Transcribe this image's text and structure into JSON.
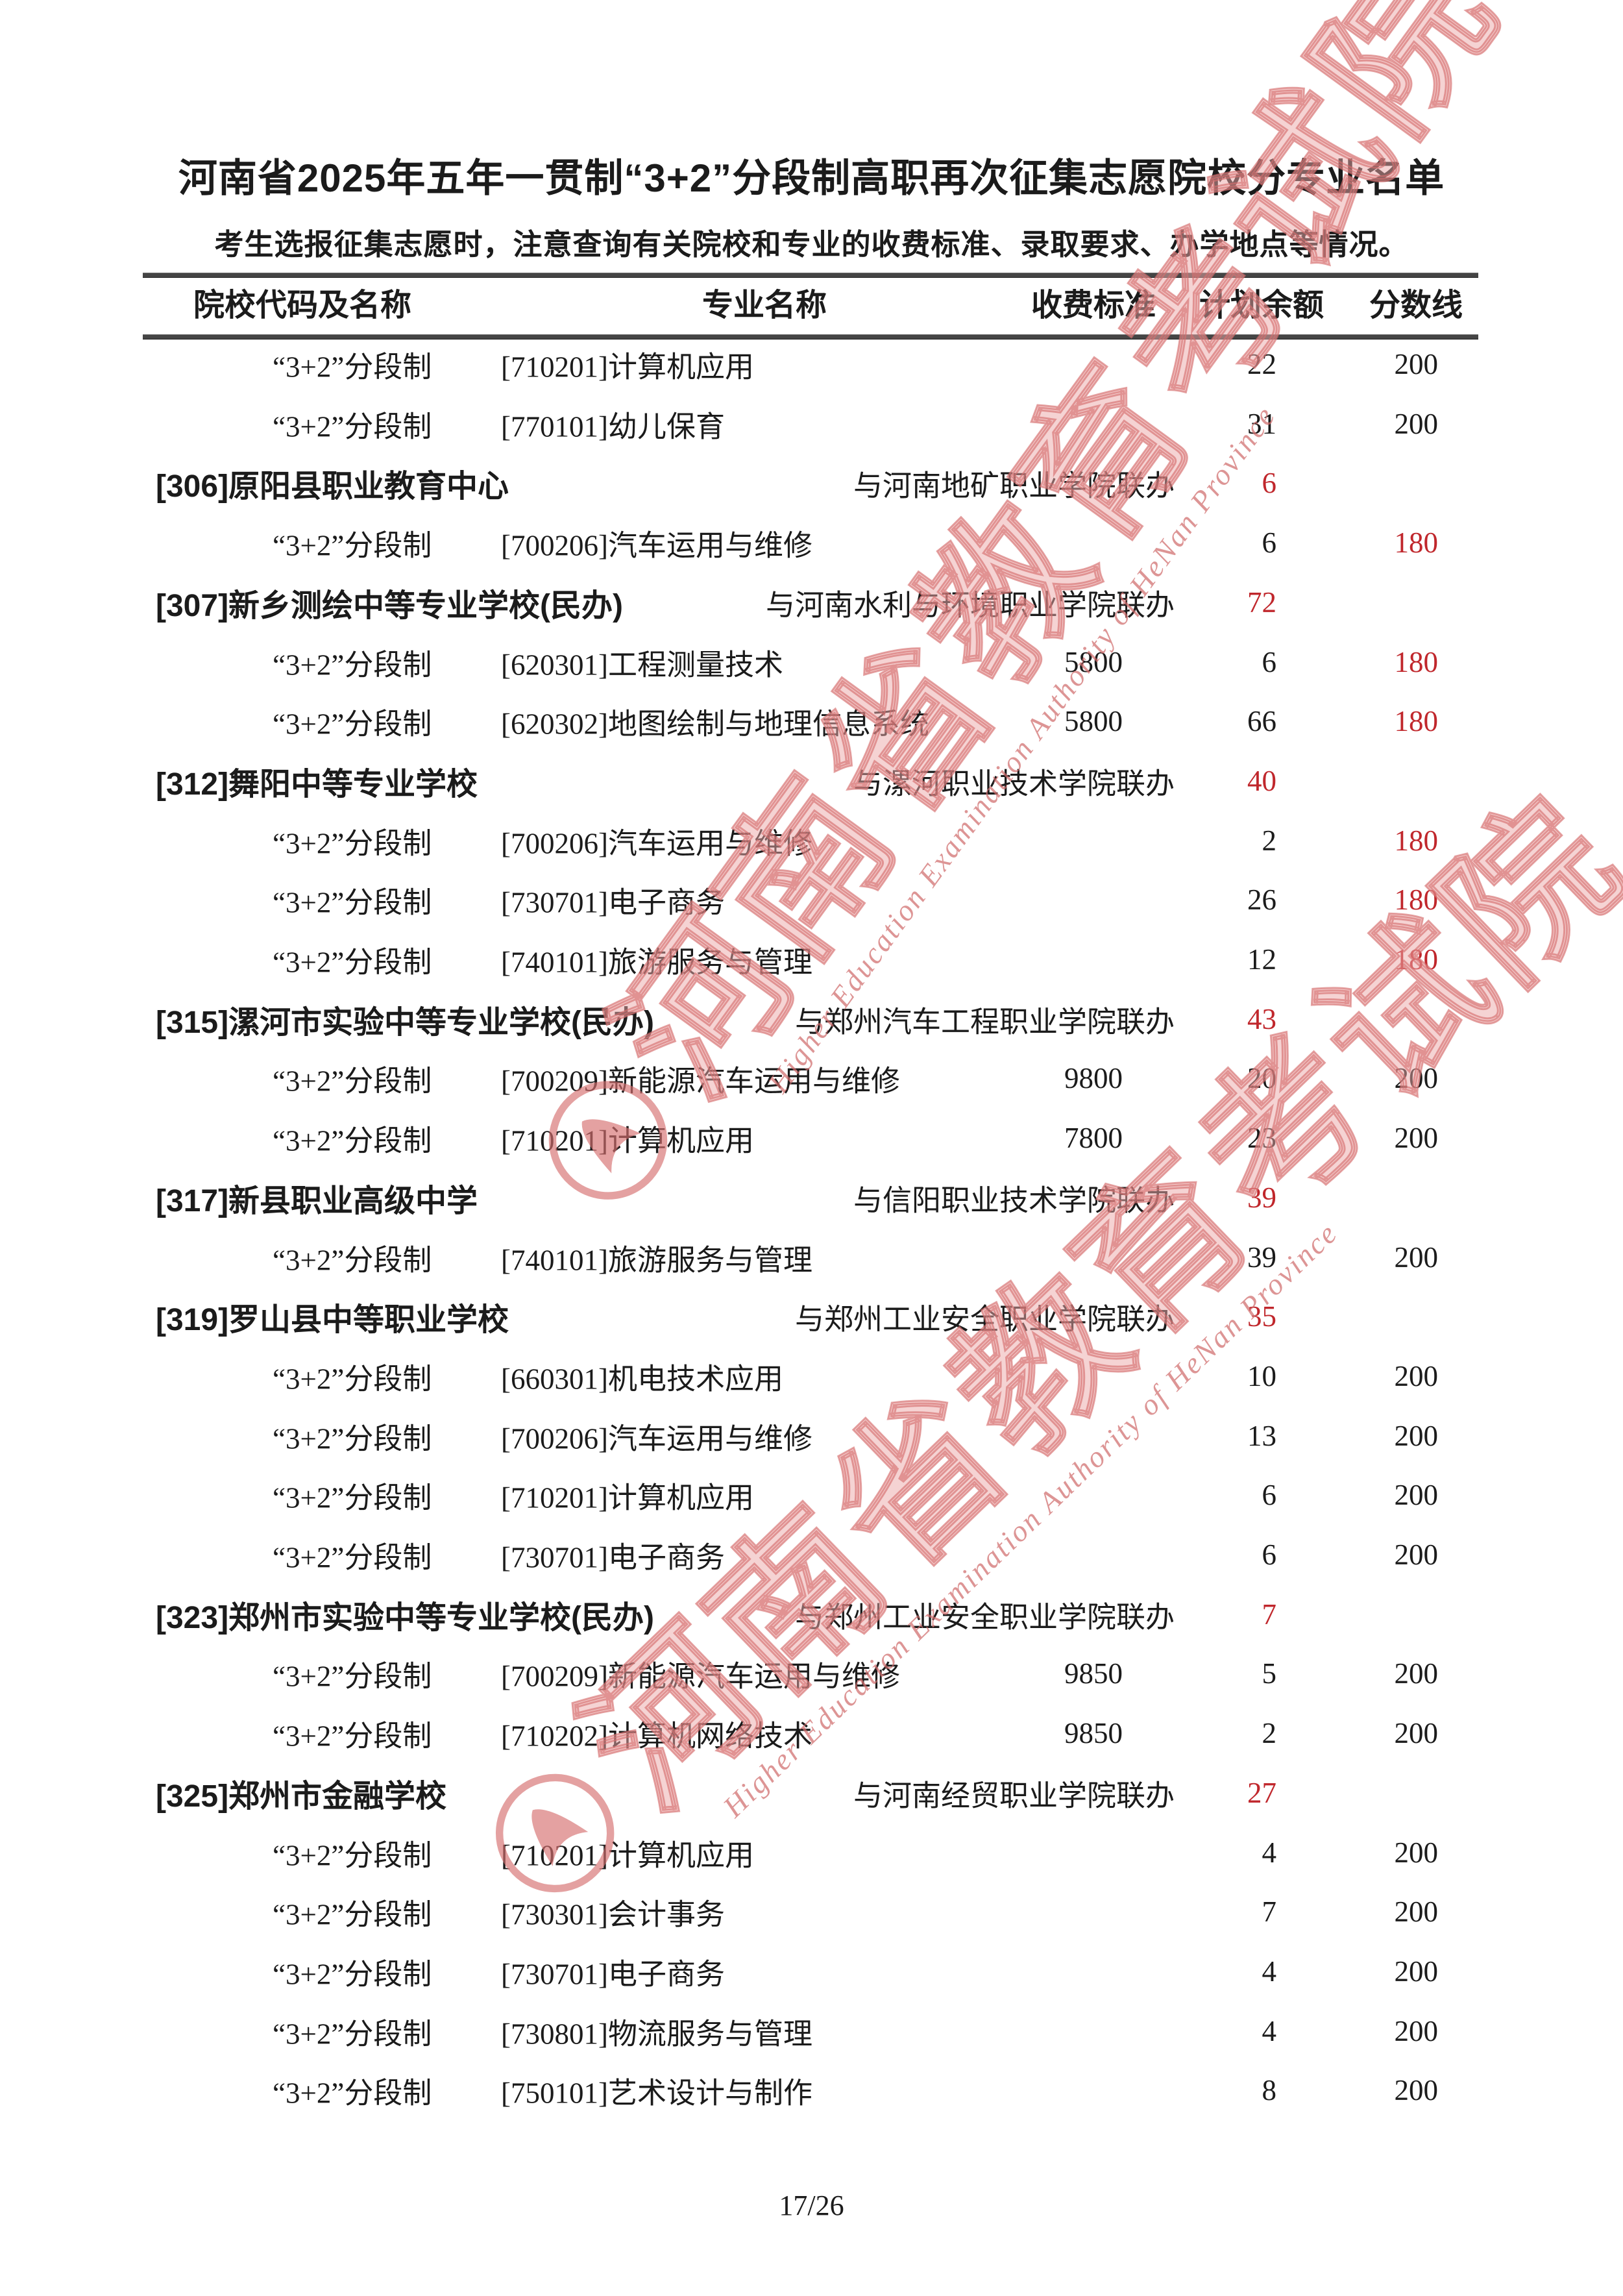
{
  "page": {
    "title": "河南省2025年五年一贯制“3+2”分段制高职再次征集志愿院校分专业名单",
    "subtitle": "考生选报征集志愿时，注意查询有关院校和专业的收费标准、录取要求、办学地点等情况。",
    "page_number": "17/26"
  },
  "colors": {
    "accent_red": "#c0272c",
    "text_black": "#1b1b1b",
    "watermark_fill": "rgba(236,168,168,0.5)",
    "watermark_stroke": "rgba(214,110,110,0.65)",
    "watermark_en": "rgba(208,108,108,0.72)"
  },
  "watermark": {
    "cn": "河南省教育考试院",
    "en": "Higher Education Examination Authority of HeNan Province"
  },
  "table": {
    "headers": [
      "院校代码及名称",
      "专业名称",
      "收费标准",
      "计划余额",
      "分数线"
    ],
    "rows": [
      {
        "type": "detail",
        "program": "“3+2”分段制",
        "major": "[710201]计算机应用",
        "fee": "",
        "plan": "22",
        "score": "200",
        "score_red": false
      },
      {
        "type": "detail",
        "program": "“3+2”分段制",
        "major": "[770101]幼儿保育",
        "fee": "",
        "plan": "31",
        "score": "200",
        "score_red": false
      },
      {
        "type": "school",
        "name": "[306]原阳县职业教育中心",
        "partner": "与河南地矿职业学院联办",
        "plan": "6"
      },
      {
        "type": "detail",
        "program": "“3+2”分段制",
        "major": "[700206]汽车运用与维修",
        "fee": "",
        "plan": "6",
        "score": "180",
        "score_red": true
      },
      {
        "type": "school",
        "name": "[307]新乡测绘中等专业学校(民办)",
        "partner": "与河南水利与环境职业学院联办",
        "plan": "72"
      },
      {
        "type": "detail",
        "program": "“3+2”分段制",
        "major": "[620301]工程测量技术",
        "fee": "5800",
        "plan": "6",
        "score": "180",
        "score_red": true
      },
      {
        "type": "detail",
        "program": "“3+2”分段制",
        "major": "[620302]地图绘制与地理信息系统",
        "fee": "5800",
        "plan": "66",
        "score": "180",
        "score_red": true
      },
      {
        "type": "school",
        "name": "[312]舞阳中等专业学校",
        "partner": "与漯河职业技术学院联办",
        "plan": "40"
      },
      {
        "type": "detail",
        "program": "“3+2”分段制",
        "major": "[700206]汽车运用与维修",
        "fee": "",
        "plan": "2",
        "score": "180",
        "score_red": true
      },
      {
        "type": "detail",
        "program": "“3+2”分段制",
        "major": "[730701]电子商务",
        "fee": "",
        "plan": "26",
        "score": "180",
        "score_red": true
      },
      {
        "type": "detail",
        "program": "“3+2”分段制",
        "major": "[740101]旅游服务与管理",
        "fee": "",
        "plan": "12",
        "score": "180",
        "score_red": true
      },
      {
        "type": "school",
        "name": "[315]漯河市实验中等专业学校(民办)",
        "partner": "与郑州汽车工程职业学院联办",
        "plan": "43"
      },
      {
        "type": "detail",
        "program": "“3+2”分段制",
        "major": "[700209]新能源汽车运用与维修",
        "fee": "9800",
        "plan": "20",
        "score": "200",
        "score_red": false
      },
      {
        "type": "detail",
        "program": "“3+2”分段制",
        "major": "[710201]计算机应用",
        "fee": "7800",
        "plan": "23",
        "score": "200",
        "score_red": false
      },
      {
        "type": "school",
        "name": "[317]新县职业高级中学",
        "partner": "与信阳职业技术学院联办",
        "plan": "39"
      },
      {
        "type": "detail",
        "program": "“3+2”分段制",
        "major": "[740101]旅游服务与管理",
        "fee": "",
        "plan": "39",
        "score": "200",
        "score_red": false
      },
      {
        "type": "school",
        "name": "[319]罗山县中等职业学校",
        "partner": "与郑州工业安全职业学院联办",
        "plan": "35"
      },
      {
        "type": "detail",
        "program": "“3+2”分段制",
        "major": "[660301]机电技术应用",
        "fee": "",
        "plan": "10",
        "score": "200",
        "score_red": false
      },
      {
        "type": "detail",
        "program": "“3+2”分段制",
        "major": "[700206]汽车运用与维修",
        "fee": "",
        "plan": "13",
        "score": "200",
        "score_red": false
      },
      {
        "type": "detail",
        "program": "“3+2”分段制",
        "major": "[710201]计算机应用",
        "fee": "",
        "plan": "6",
        "score": "200",
        "score_red": false
      },
      {
        "type": "detail",
        "program": "“3+2”分段制",
        "major": "[730701]电子商务",
        "fee": "",
        "plan": "6",
        "score": "200",
        "score_red": false
      },
      {
        "type": "school",
        "name": "[323]郑州市实验中等专业学校(民办)",
        "partner": "与郑州工业安全职业学院联办",
        "plan": "7"
      },
      {
        "type": "detail",
        "program": "“3+2”分段制",
        "major": "[700209]新能源汽车运用与维修",
        "fee": "9850",
        "plan": "5",
        "score": "200",
        "score_red": false
      },
      {
        "type": "detail",
        "program": "“3+2”分段制",
        "major": "[710202]计算机网络技术",
        "fee": "9850",
        "plan": "2",
        "score": "200",
        "score_red": false
      },
      {
        "type": "school",
        "name": "[325]郑州市金融学校",
        "partner": "与河南经贸职业学院联办",
        "plan": "27"
      },
      {
        "type": "detail",
        "program": "“3+2”分段制",
        "major": "[710201]计算机应用",
        "fee": "",
        "plan": "4",
        "score": "200",
        "score_red": false
      },
      {
        "type": "detail",
        "program": "“3+2”分段制",
        "major": "[730301]会计事务",
        "fee": "",
        "plan": "7",
        "score": "200",
        "score_red": false
      },
      {
        "type": "detail",
        "program": "“3+2”分段制",
        "major": "[730701]电子商务",
        "fee": "",
        "plan": "4",
        "score": "200",
        "score_red": false
      },
      {
        "type": "detail",
        "program": "“3+2”分段制",
        "major": "[730801]物流服务与管理",
        "fee": "",
        "plan": "4",
        "score": "200",
        "score_red": false
      },
      {
        "type": "detail",
        "program": "“3+2”分段制",
        "major": "[750101]艺术设计与制作",
        "fee": "",
        "plan": "8",
        "score": "200",
        "score_red": false
      }
    ]
  }
}
